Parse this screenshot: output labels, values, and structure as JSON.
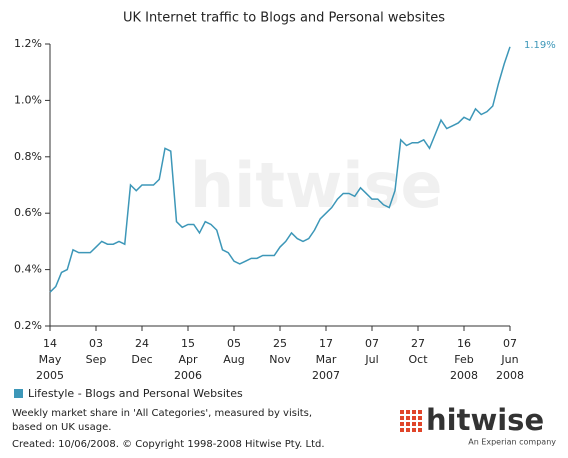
{
  "chart_data": {
    "type": "line",
    "title": "UK Internet traffic to Blogs and Personal websites",
    "x": [
      "2005-05-14",
      "2005-05-28",
      "2005-06-11",
      "2005-06-25",
      "2005-07-09",
      "2005-07-23",
      "2005-08-06",
      "2005-08-20",
      "2005-09-03",
      "2005-09-17",
      "2005-10-01",
      "2005-10-15",
      "2005-10-29",
      "2005-11-12",
      "2005-11-26",
      "2005-12-10",
      "2005-12-24",
      "2006-01-07",
      "2006-01-21",
      "2006-02-04",
      "2006-02-18",
      "2006-03-04",
      "2006-03-18",
      "2006-04-01",
      "2006-04-15",
      "2006-04-29",
      "2006-05-13",
      "2006-05-27",
      "2006-06-10",
      "2006-06-24",
      "2006-07-08",
      "2006-07-22",
      "2006-08-05",
      "2006-08-19",
      "2006-09-02",
      "2006-09-16",
      "2006-09-30",
      "2006-10-14",
      "2006-10-28",
      "2006-11-11",
      "2006-11-25",
      "2006-12-09",
      "2006-12-23",
      "2007-01-06",
      "2007-01-20",
      "2007-02-03",
      "2007-02-17",
      "2007-03-03",
      "2007-03-17",
      "2007-03-31",
      "2007-04-14",
      "2007-04-28",
      "2007-05-12",
      "2007-05-26",
      "2007-06-09",
      "2007-06-23",
      "2007-07-07",
      "2007-07-21",
      "2007-08-04",
      "2007-08-18",
      "2007-09-01",
      "2007-09-15",
      "2007-09-29",
      "2007-10-13",
      "2007-10-27",
      "2007-11-10",
      "2007-11-24",
      "2007-12-08",
      "2007-12-22",
      "2008-01-05",
      "2008-01-19",
      "2008-02-02",
      "2008-02-16",
      "2008-03-01",
      "2008-03-15",
      "2008-03-29",
      "2008-04-12",
      "2008-04-26",
      "2008-05-10",
      "2008-05-24",
      "2008-06-07"
    ],
    "series": [
      {
        "name": "Lifestyle - Blogs and Personal Websites",
        "color": "#3d97b8",
        "values": [
          0.32,
          0.34,
          0.39,
          0.4,
          0.47,
          0.46,
          0.46,
          0.46,
          0.48,
          0.5,
          0.49,
          0.49,
          0.5,
          0.49,
          0.7,
          0.68,
          0.7,
          0.7,
          0.7,
          0.72,
          0.83,
          0.82,
          0.57,
          0.55,
          0.56,
          0.56,
          0.53,
          0.57,
          0.56,
          0.54,
          0.47,
          0.46,
          0.43,
          0.42,
          0.43,
          0.44,
          0.44,
          0.45,
          0.45,
          0.45,
          0.48,
          0.5,
          0.53,
          0.51,
          0.5,
          0.51,
          0.54,
          0.58,
          0.6,
          0.62,
          0.65,
          0.67,
          0.67,
          0.66,
          0.69,
          0.67,
          0.65,
          0.65,
          0.63,
          0.62,
          0.68,
          0.86,
          0.84,
          0.85,
          0.85,
          0.86,
          0.83,
          0.88,
          0.93,
          0.9,
          0.91,
          0.92,
          0.94,
          0.93,
          0.97,
          0.95,
          0.96,
          0.98,
          1.06,
          1.13,
          1.19
        ],
        "value_labels": [
          null,
          null,
          null,
          null,
          null,
          null,
          null,
          null,
          null,
          null,
          null,
          null,
          null,
          null,
          null,
          null,
          null,
          null,
          null,
          null,
          null,
          null,
          null,
          null,
          null,
          null,
          null,
          null,
          null,
          null,
          null,
          null,
          null,
          null,
          null,
          null,
          null,
          null,
          null,
          null,
          null,
          null,
          null,
          null,
          null,
          null,
          null,
          null,
          null,
          null,
          null,
          null,
          null,
          null,
          null,
          null,
          null,
          null,
          null,
          null,
          null,
          null,
          null,
          null,
          null,
          null,
          null,
          null,
          null,
          null,
          null,
          null,
          null,
          null,
          null,
          null,
          null,
          null,
          null,
          null,
          "1.19%"
        ]
      }
    ],
    "xlim": [
      "2005-05-14",
      "2008-06-07"
    ],
    "xticks": [
      {
        "value": "2005-05-14",
        "label": [
          "14",
          "May",
          "2005"
        ]
      },
      {
        "value": "2005-09-03",
        "label": [
          "03",
          "Sep"
        ]
      },
      {
        "value": "2005-12-24",
        "label": [
          "24",
          "Dec"
        ]
      },
      {
        "value": "2006-04-15",
        "label": [
          "15",
          "Apr",
          "2006"
        ]
      },
      {
        "value": "2006-08-05",
        "label": [
          "05",
          "Aug"
        ]
      },
      {
        "value": "2006-11-25",
        "label": [
          "25",
          "Nov"
        ]
      },
      {
        "value": "2007-03-17",
        "label": [
          "17",
          "Mar",
          "2007"
        ]
      },
      {
        "value": "2007-07-07",
        "label": [
          "07",
          "Jul"
        ]
      },
      {
        "value": "2007-10-27",
        "label": [
          "27",
          "Oct"
        ]
      },
      {
        "value": "2008-02-16",
        "label": [
          "16",
          "Feb",
          "2008"
        ]
      },
      {
        "value": "2008-06-07",
        "label": [
          "07",
          "Jun",
          "2008"
        ]
      }
    ],
    "ylim": [
      0.2,
      1.2
    ],
    "yticks": [
      {
        "value": 0.2,
        "label": "0.2%"
      },
      {
        "value": 0.4,
        "label": "0.4%"
      },
      {
        "value": 0.6,
        "label": "0.6%"
      },
      {
        "value": 0.8,
        "label": "0.8%"
      },
      {
        "value": 1.0,
        "label": "1.0%"
      },
      {
        "value": 1.2,
        "label": "1.2%"
      }
    ],
    "notes": [
      "Weekly market share in 'All Categories', measured by visits,",
      "based on UK usage.",
      "Created: 10/06/2008. © Copyright 1998-2008 Hitwise Pty. Ltd."
    ]
  },
  "logo": {
    "name": "hitwise",
    "tagline": "An Experian company"
  }
}
